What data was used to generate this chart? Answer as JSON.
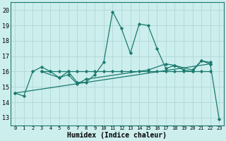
{
  "xlabel": "Humidex (Indice chaleur)",
  "xlim": [
    -0.5,
    23.5
  ],
  "ylim": [
    12.5,
    20.5
  ],
  "yticks": [
    13,
    14,
    15,
    16,
    17,
    18,
    19,
    20
  ],
  "xticks": [
    0,
    1,
    2,
    3,
    4,
    5,
    6,
    7,
    8,
    9,
    10,
    11,
    12,
    13,
    14,
    15,
    16,
    17,
    18,
    19,
    20,
    21,
    22,
    23
  ],
  "bg_color": "#cceeed",
  "line_color": "#1a7a6e",
  "grid_color": "#aad4d2",
  "line1_x": [
    0,
    1,
    2,
    3,
    4,
    5,
    6,
    7,
    8,
    9,
    10,
    11,
    12,
    13,
    14,
    15,
    16,
    17,
    18,
    19,
    20,
    21,
    22
  ],
  "line1_y": [
    14.6,
    14.4,
    16.0,
    16.3,
    16.0,
    15.6,
    16.0,
    15.3,
    15.3,
    15.8,
    16.6,
    19.9,
    18.8,
    17.2,
    19.1,
    19.0,
    17.5,
    16.2,
    16.4,
    16.1,
    16.0,
    16.7,
    16.6
  ],
  "line2_x": [
    3,
    4,
    5,
    6,
    7,
    8,
    9,
    10,
    11,
    12,
    13,
    14,
    15,
    16,
    17,
    18,
    19,
    20,
    21,
    22
  ],
  "line2_y": [
    16.0,
    16.0,
    16.0,
    16.0,
    16.0,
    16.0,
    16.0,
    16.0,
    16.0,
    16.0,
    16.0,
    16.0,
    16.0,
    16.0,
    16.0,
    16.0,
    16.0,
    16.0,
    16.0,
    16.0
  ],
  "line3_x": [
    0,
    22,
    23
  ],
  "line3_y": [
    14.6,
    16.5,
    12.9
  ],
  "line4_x": [
    3,
    5,
    6,
    7,
    8,
    15,
    17,
    18,
    20,
    21,
    22
  ],
  "line4_y": [
    16.0,
    15.6,
    15.8,
    15.2,
    15.5,
    16.1,
    16.5,
    16.4,
    16.1,
    16.7,
    16.5
  ]
}
